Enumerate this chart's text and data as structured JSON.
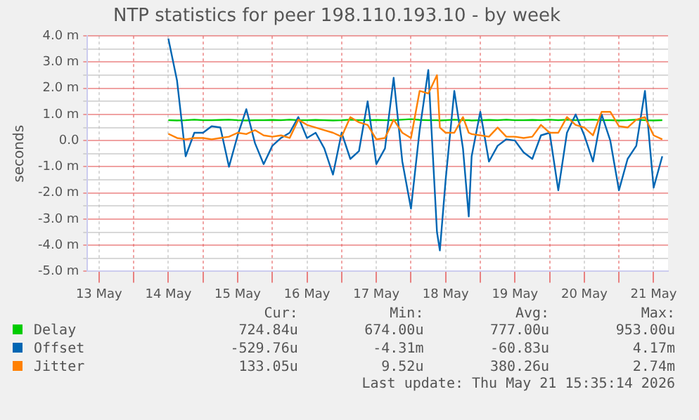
{
  "chart_data": {
    "type": "line",
    "title": "NTP statistics for peer 198.110.193.10 - by week",
    "ylabel": "seconds",
    "x": [
      "2026-05-14T12:00",
      "2026-05-14T15:00",
      "2026-05-14T18:00",
      "2026-05-14T21:00",
      "2026-05-15T00:00",
      "2026-05-15T03:00",
      "2026-05-15T06:00",
      "2026-05-15T09:00",
      "2026-05-15T12:00",
      "2026-05-15T15:00",
      "2026-05-15T18:00",
      "2026-05-15T21:00",
      "2026-05-16T00:00",
      "2026-05-16T03:00",
      "2026-05-16T06:00",
      "2026-05-16T09:00",
      "2026-05-16T12:00",
      "2026-05-16T15:00",
      "2026-05-16T18:00",
      "2026-05-16T21:00",
      "2026-05-17T00:00",
      "2026-05-17T03:00",
      "2026-05-17T06:00",
      "2026-05-17T09:00",
      "2026-05-17T12:00",
      "2026-05-17T15:00",
      "2026-05-17T18:00",
      "2026-05-17T21:00",
      "2026-05-18T00:00",
      "2026-05-18T03:00",
      "2026-05-18T06:00",
      "2026-05-18T09:00",
      "2026-05-18T10:00",
      "2026-05-18T12:00",
      "2026-05-18T15:00",
      "2026-05-18T18:00",
      "2026-05-18T20:00",
      "2026-05-18T21:00",
      "2026-05-19T00:00",
      "2026-05-19T03:00",
      "2026-05-19T06:00",
      "2026-05-19T09:00",
      "2026-05-19T12:00",
      "2026-05-19T15:00",
      "2026-05-19T18:00",
      "2026-05-19T21:00",
      "2026-05-20T00:00",
      "2026-05-20T03:00",
      "2026-05-20T06:00",
      "2026-05-20T09:00",
      "2026-05-20T12:00",
      "2026-05-20T15:00",
      "2026-05-20T18:00",
      "2026-05-20T21:00",
      "2026-05-21T00:00",
      "2026-05-21T03:00",
      "2026-05-21T06:00",
      "2026-05-21T09:00",
      "2026-05-21T12:00",
      "2026-05-21T15:00"
    ],
    "series": [
      {
        "name": "Delay",
        "color": "#00cc00",
        "values": [
          0.78,
          0.77,
          0.78,
          0.8,
          0.78,
          0.78,
          0.79,
          0.8,
          0.78,
          0.77,
          0.78,
          0.78,
          0.79,
          0.78,
          0.8,
          0.78,
          0.78,
          0.79,
          0.78,
          0.77,
          0.78,
          0.8,
          0.78,
          0.78,
          0.79,
          0.78,
          0.78,
          0.8,
          0.82,
          0.79,
          0.78,
          0.78,
          0.77,
          0.78,
          0.8,
          0.78,
          0.78,
          0.77,
          0.78,
          0.79,
          0.78,
          0.8,
          0.78,
          0.78,
          0.79,
          0.78,
          0.8,
          0.78,
          0.8,
          0.78,
          0.79,
          0.8,
          0.78,
          0.78,
          0.77,
          0.78,
          0.8,
          0.78,
          0.77,
          0.78
        ]
      },
      {
        "name": "Offset",
        "color": "#0066b3",
        "values": [
          3.9,
          2.3,
          -0.6,
          0.3,
          0.3,
          0.55,
          0.5,
          -1.0,
          0.2,
          1.2,
          -0.1,
          -0.9,
          -0.2,
          0.1,
          0.3,
          0.9,
          0.1,
          0.3,
          -0.3,
          -1.3,
          0.3,
          -0.7,
          -0.4,
          1.5,
          -0.9,
          -0.3,
          2.4,
          -0.8,
          -2.6,
          0.4,
          2.7,
          -3.5,
          -4.2,
          -1.5,
          1.9,
          -0.3,
          -2.9,
          -0.6,
          1.1,
          -0.8,
          -0.2,
          0.05,
          0.0,
          -0.45,
          -0.7,
          0.2,
          0.3,
          -1.9,
          0.3,
          1.0,
          0.2,
          -0.8,
          1.0,
          0.0,
          -1.9,
          -0.7,
          -0.2,
          1.9,
          -1.8,
          -0.6
        ]
      },
      {
        "name": "Jitter",
        "color": "#ff8000",
        "values": [
          0.26,
          0.1,
          0.05,
          0.1,
          0.1,
          0.05,
          0.1,
          0.15,
          0.3,
          0.25,
          0.4,
          0.2,
          0.15,
          0.2,
          0.1,
          0.8,
          0.6,
          0.5,
          0.4,
          0.3,
          0.15,
          0.9,
          0.7,
          0.6,
          0.05,
          0.1,
          0.8,
          0.3,
          0.1,
          1.9,
          1.8,
          2.5,
          0.5,
          0.3,
          0.3,
          0.9,
          0.3,
          0.25,
          0.2,
          0.15,
          0.5,
          0.15,
          0.15,
          0.1,
          0.15,
          0.6,
          0.3,
          0.3,
          0.9,
          0.6,
          0.5,
          0.2,
          1.1,
          1.1,
          0.55,
          0.5,
          0.8,
          0.9,
          0.2,
          0.05
        ]
      }
    ],
    "xlim": [
      "2026-05-13T08:00",
      "2026-05-21T17:00"
    ],
    "xticks": [
      {
        "value": "2026-05-13T12:00",
        "label": "13 May"
      },
      {
        "value": "2026-05-14T00:00",
        "label": null
      },
      {
        "value": "2026-05-14T12:00",
        "label": "14 May"
      },
      {
        "value": "2026-05-15T00:00",
        "label": null
      },
      {
        "value": "2026-05-15T12:00",
        "label": "15 May"
      },
      {
        "value": "2026-05-16T00:00",
        "label": null
      },
      {
        "value": "2026-05-16T12:00",
        "label": "16 May"
      },
      {
        "value": "2026-05-17T00:00",
        "label": null
      },
      {
        "value": "2026-05-17T12:00",
        "label": "17 May"
      },
      {
        "value": "2026-05-18T00:00",
        "label": null
      },
      {
        "value": "2026-05-18T12:00",
        "label": "18 May"
      },
      {
        "value": "2026-05-19T00:00",
        "label": null
      },
      {
        "value": "2026-05-19T12:00",
        "label": "19 May"
      },
      {
        "value": "2026-05-20T00:00",
        "label": null
      },
      {
        "value": "2026-05-20T12:00",
        "label": "20 May"
      },
      {
        "value": "2026-05-21T00:00",
        "label": null
      },
      {
        "value": "2026-05-21T12:00",
        "label": "21 May"
      }
    ],
    "ylim": [
      -5,
      4
    ],
    "yticks": [
      {
        "value": -5,
        "label": "-5.0 m"
      },
      {
        "value": -4,
        "label": "-4.0 m"
      },
      {
        "value": -3,
        "label": "-3.0 m"
      },
      {
        "value": -2,
        "label": "-2.0 m"
      },
      {
        "value": -1,
        "label": "-1.0 m"
      },
      {
        "value": 0,
        "label": "0.0"
      },
      {
        "value": 1,
        "label": "1.0 m"
      },
      {
        "value": 2,
        "label": "2.0 m"
      },
      {
        "value": 3,
        "label": "3.0 m"
      },
      {
        "value": 4,
        "label": "4.0 m"
      }
    ],
    "grid": true,
    "legend": "bottom",
    "marker": "none",
    "line_style": "solid",
    "annotations": [
      "Cur:",
      "Min:",
      "Avg:",
      "Max:",
      "724.84u",
      "674.00u",
      "777.00u",
      "953.00u",
      "-529.76u",
      "-4.31m",
      "-60.83u",
      "4.17m",
      "133.05u",
      "9.52u",
      "380.26u",
      "2.74m",
      "Last update: Thu May 21 15:35:14 2026"
    ]
  }
}
